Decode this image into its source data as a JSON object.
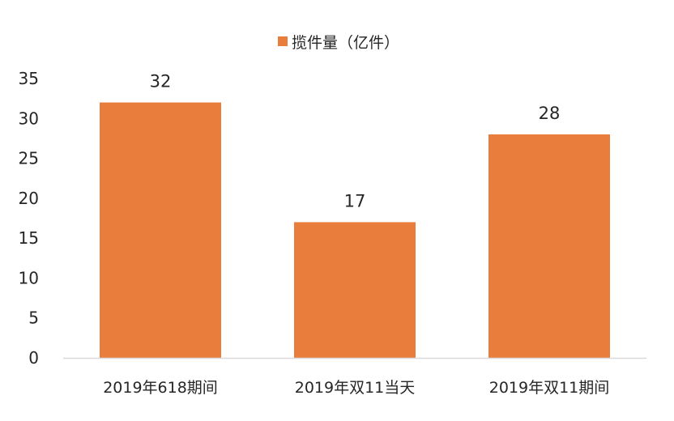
{
  "chart_data": {
    "type": "bar",
    "categories": [
      "2019年618期间",
      "2019年双11当天",
      "2019年双11期间"
    ],
    "series": [
      {
        "name": "揽件量（亿件）",
        "values": [
          32,
          17,
          28
        ]
      }
    ],
    "data_labels": [
      "32",
      "17",
      "28"
    ],
    "y_ticks": [
      "0",
      "5",
      "10",
      "15",
      "20",
      "25",
      "30",
      "35"
    ],
    "ylim": [
      0,
      35
    ],
    "grid": false,
    "legend_position": "top-center",
    "colors": {
      "bar": "#E97D3C",
      "axis": "#D9D9D9",
      "text": "#262626"
    }
  }
}
